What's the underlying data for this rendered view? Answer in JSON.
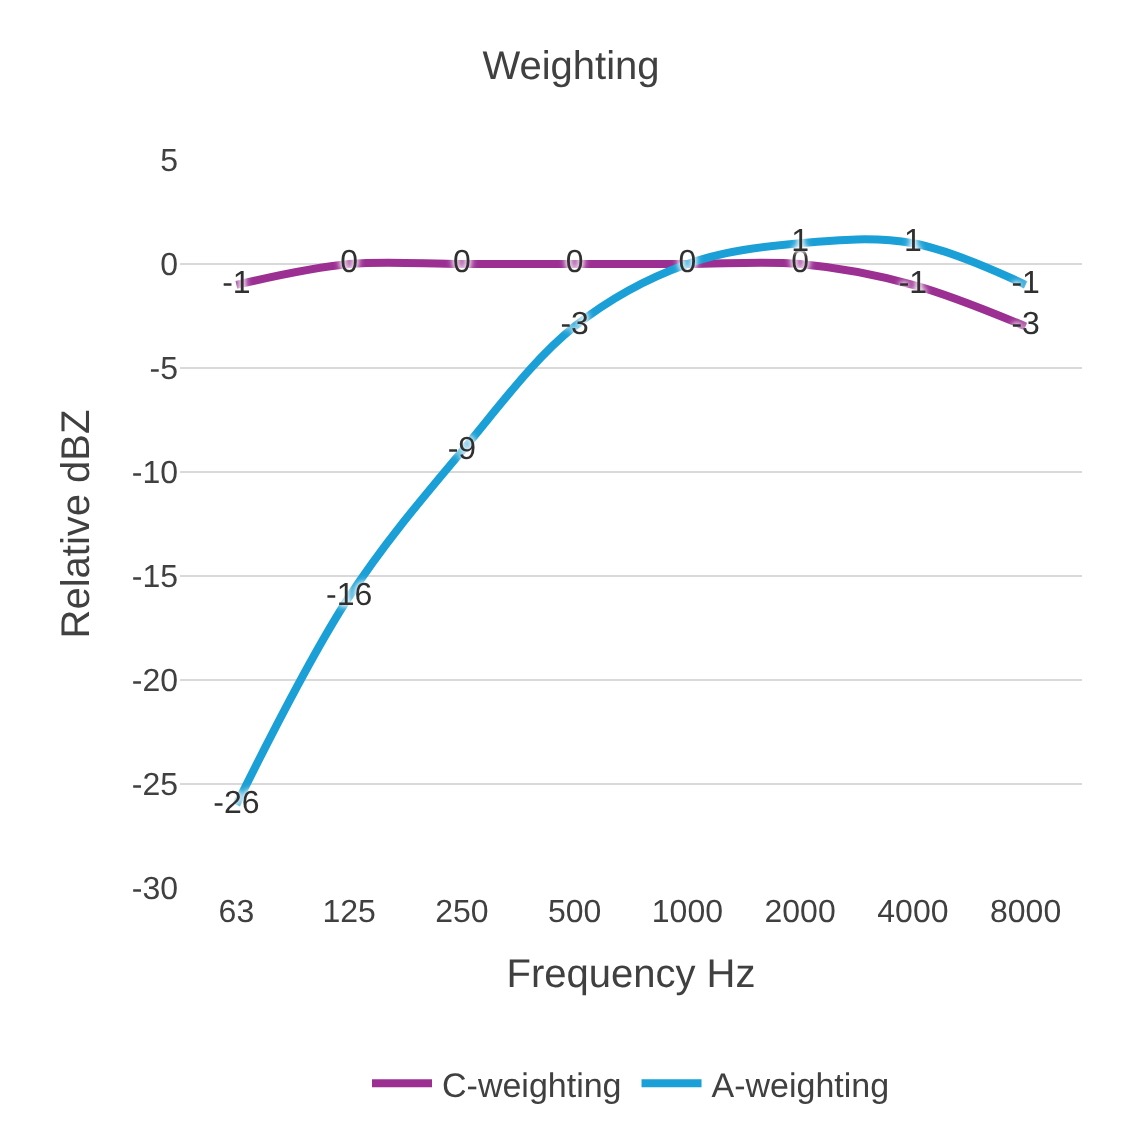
{
  "chart_data": {
    "type": "line",
    "title": "Weighting",
    "xlabel": "Frequency Hz",
    "ylabel": "Relative dBZ",
    "categories": [
      "63",
      "125",
      "250",
      "500",
      "1000",
      "2000",
      "4000",
      "8000"
    ],
    "series": [
      {
        "name": "C-weighting",
        "color": "#9b2f92",
        "values": [
          -1,
          0,
          0,
          0,
          0,
          0,
          -1,
          -3
        ],
        "value_labels": [
          "-1",
          "0",
          "0",
          "0",
          "0",
          "0",
          "-1",
          "-3"
        ]
      },
      {
        "name": "A-weighting",
        "color": "#1aa0d6",
        "values": [
          -26,
          -16,
          -9,
          -3,
          0,
          1,
          1,
          -1
        ],
        "value_labels": [
          "-26",
          "-16",
          "-9",
          "-3",
          null,
          "1",
          "1",
          "-1"
        ]
      }
    ],
    "ylim": [
      -30,
      5
    ],
    "yticks": [
      -30,
      -25,
      -20,
      -15,
      -10,
      -5,
      0,
      5
    ],
    "grid": "y",
    "legend": "bottom",
    "marker": "none",
    "line_style": "solid"
  }
}
